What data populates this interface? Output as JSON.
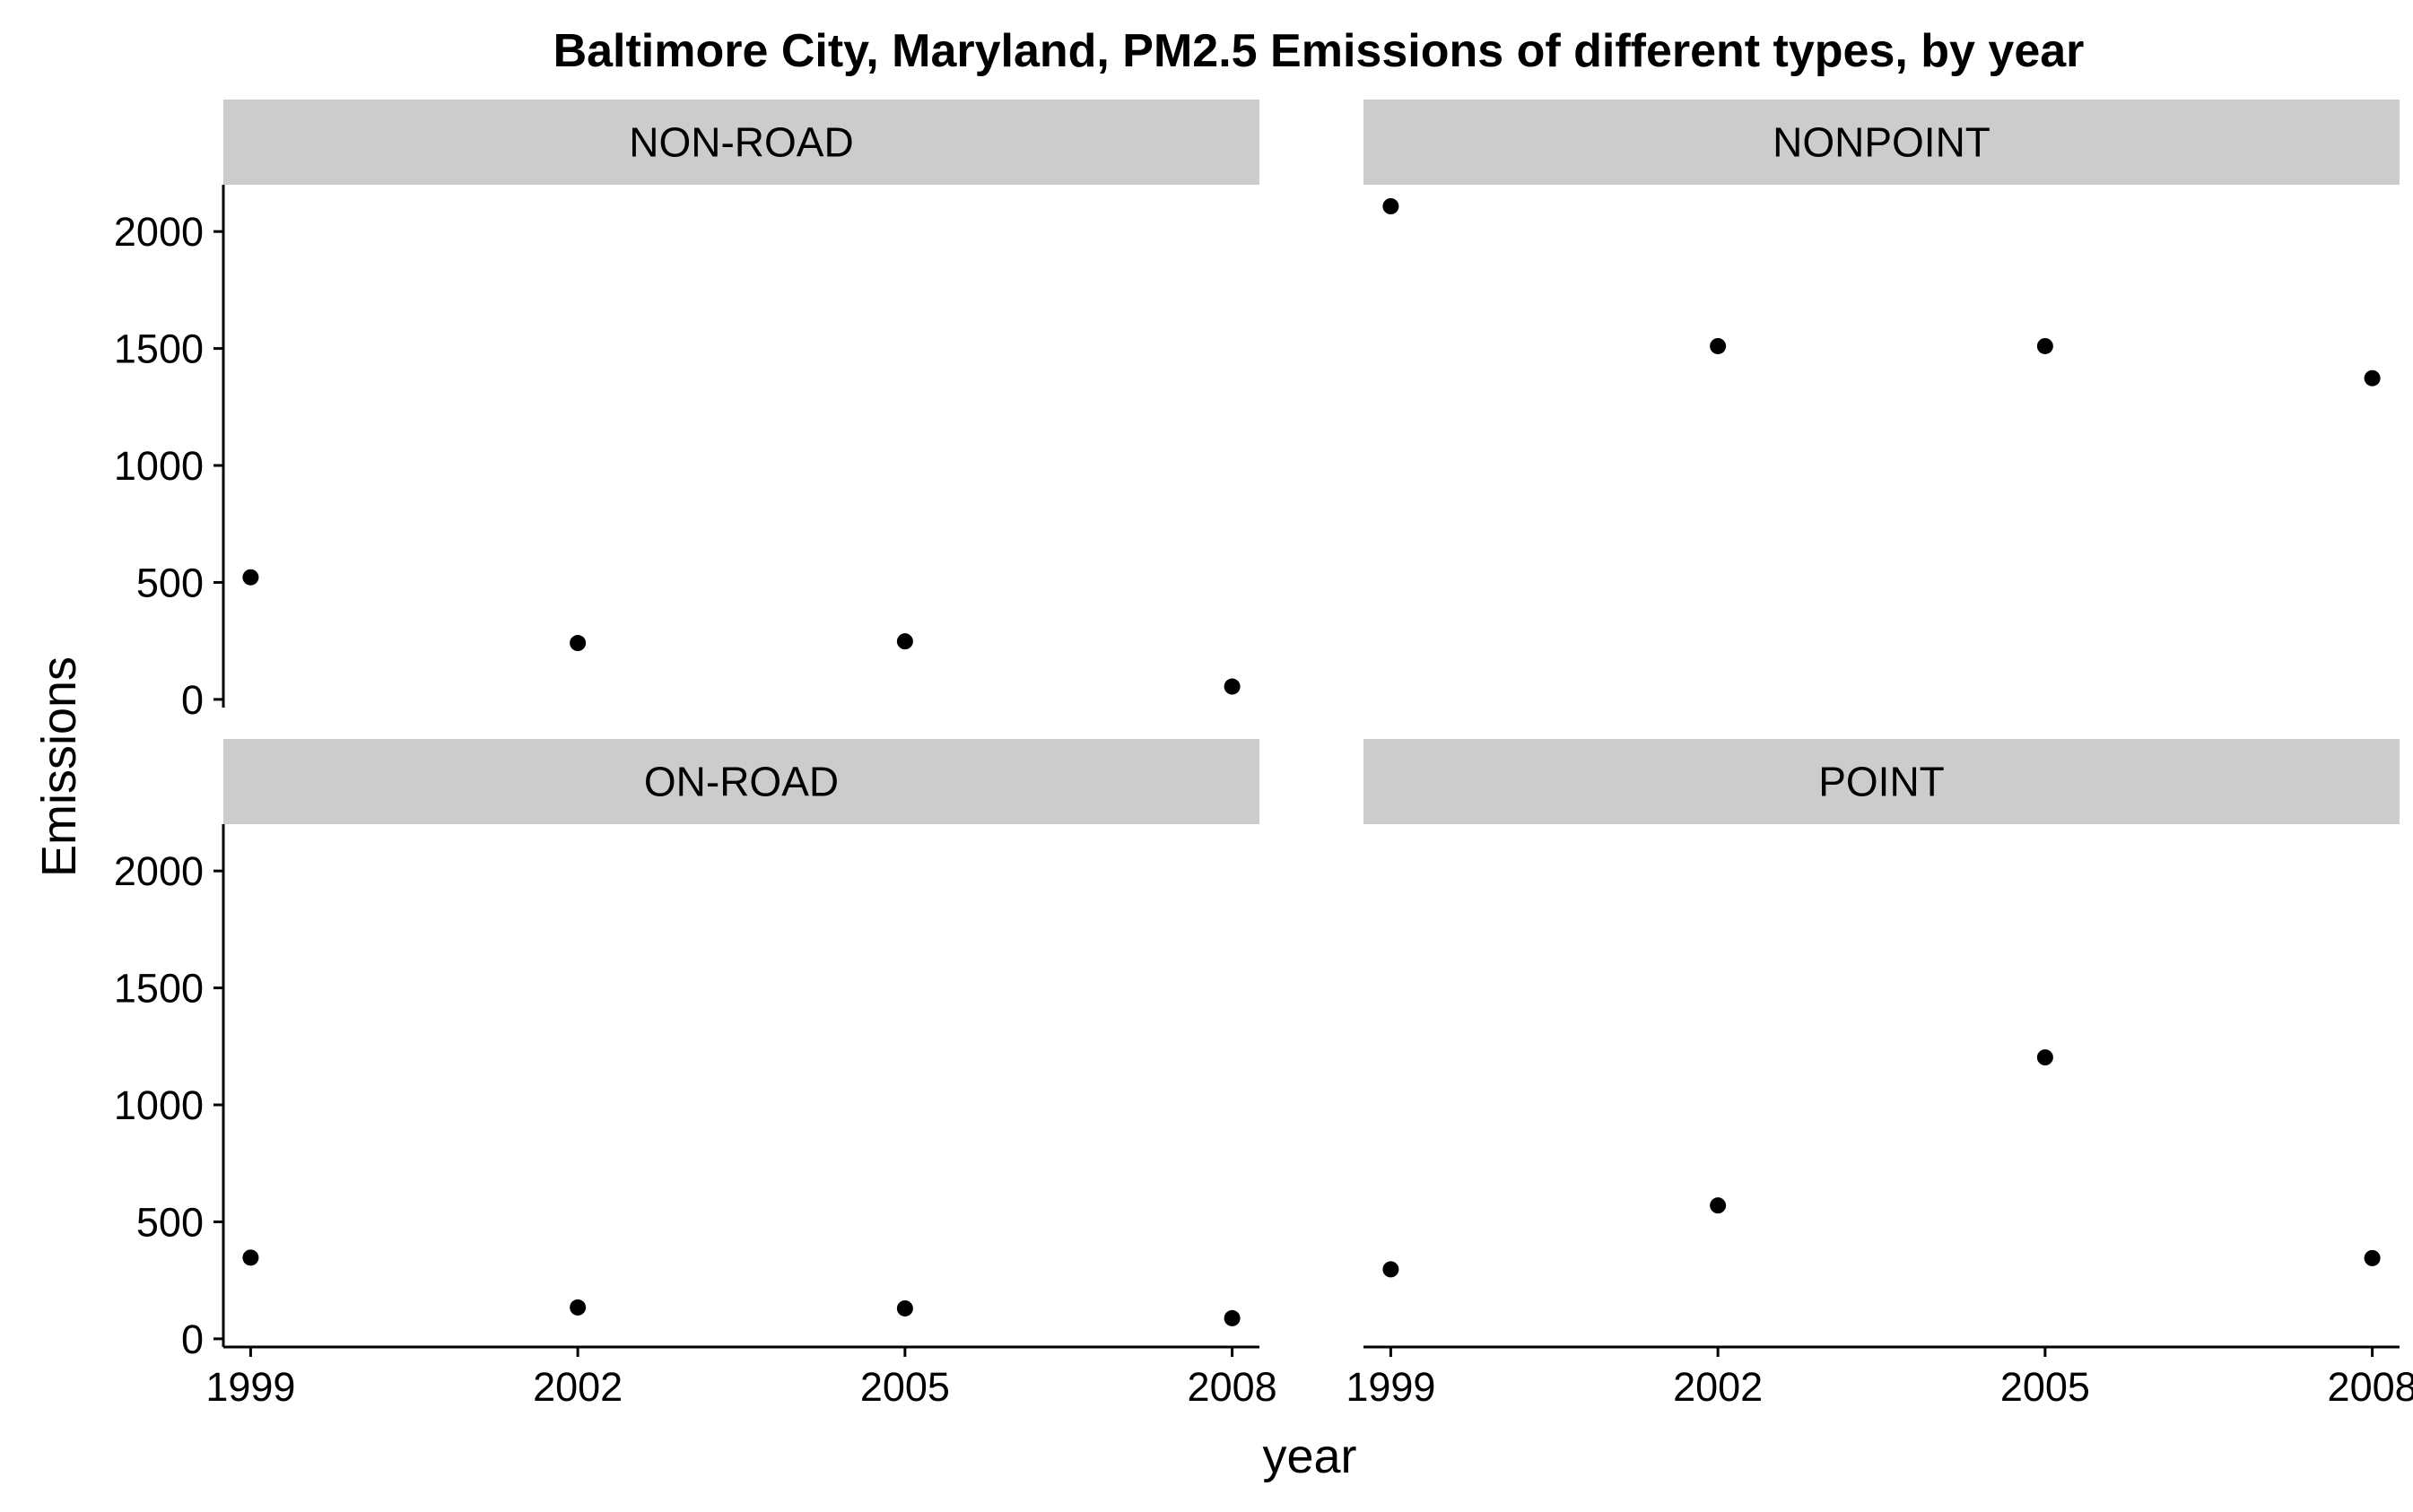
{
  "chart_data": {
    "type": "scatter",
    "title": "Baltimore City, Maryland, PM2.5 Emissions of different types, by year",
    "xlabel": "year",
    "ylabel": "Emissions",
    "x_ticks": [
      "1999",
      "2002",
      "2005",
      "2008"
    ],
    "y_ticks": [
      "0",
      "500",
      "1000",
      "1500",
      "2000"
    ],
    "xlim": [
      1998.75,
      2008.25
    ],
    "ylim": [
      -35,
      2200
    ],
    "grid": false,
    "legend": "none",
    "facets": [
      {
        "name": "NON-ROAD",
        "x": [
          1999,
          2002,
          2005,
          2008
        ],
        "y": [
          522,
          241,
          248,
          55
        ]
      },
      {
        "name": "NONPOINT",
        "x": [
          1999,
          2002,
          2005,
          2008
        ],
        "y": [
          2108,
          1510,
          1510,
          1373
        ]
      },
      {
        "name": "ON-ROAD",
        "x": [
          1999,
          2002,
          2005,
          2008
        ],
        "y": [
          347,
          134,
          130,
          88
        ]
      },
      {
        "name": "POINT",
        "x": [
          1999,
          2002,
          2005,
          2008
        ],
        "y": [
          297,
          570,
          1203,
          345
        ]
      }
    ]
  },
  "colors": {
    "point": "#000000",
    "strip_background": "#cccccc",
    "axis_line": "#000000",
    "background": "#ffffff"
  }
}
